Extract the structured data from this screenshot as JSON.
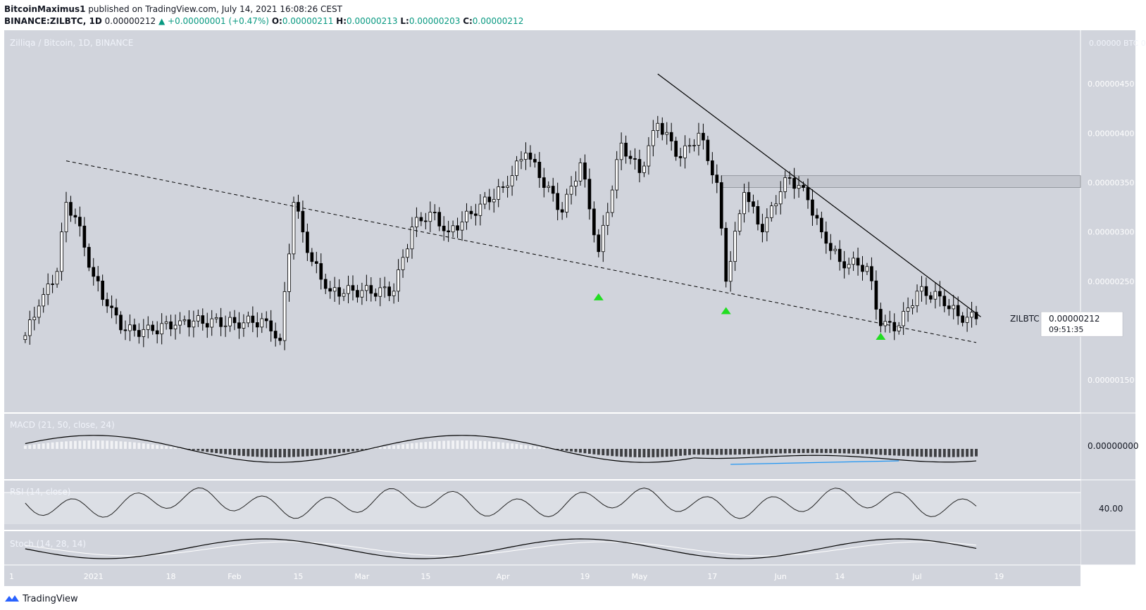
{
  "header": {
    "author": "BitcoinMaximus1",
    "published_text": "published on TradingView.com, July 14, 2021 16:08:26 CEST",
    "symbol_full": "BINANCE:ZILBTC, 1D",
    "last_price": "0.00000212",
    "change_arrow": "▲",
    "change": "+0.00000001 (+0.47%)",
    "o_label": "O:",
    "o_value": "0.00000211",
    "h_label": "H:",
    "h_value": "0.00000213",
    "l_label": "L:",
    "l_value": "0.00000203",
    "c_label": "C:",
    "c_value": "0.00000212"
  },
  "footer": {
    "brand": "TradingView",
    "logo_icon": "tradingview-logo-icon"
  },
  "colors": {
    "pane_bg": "#d1d4dc",
    "up_fill": "#ffffff",
    "down_fill": "#000000",
    "marker": "#22dd22",
    "macd_line": "#000000",
    "signal_line": "#ffffff",
    "divergence": "#2196f3",
    "text_light": "#f0f3fa"
  },
  "chart_data": {
    "type": "candlestick",
    "title": "Zilliqa / Bitcoin, 1D, BINANCE",
    "currency_label": "0.00000 BTC 00",
    "y_axis_ticks": [
      "0.00000450",
      "0.00000400",
      "0.00000350",
      "0.00000300",
      "0.00000250",
      "0.00000150"
    ],
    "y_tick_values": [
      450,
      400,
      350,
      300,
      250,
      150
    ],
    "ylim": [
      143,
      485
    ],
    "price_scale_note": "values x1e-8 BTC",
    "x_axis_labels": [
      "1",
      "2021",
      "18",
      "Feb",
      "15",
      "Mar",
      "15",
      "Apr",
      "19",
      "May",
      "17",
      "Jun",
      "14",
      "Jul",
      "19"
    ],
    "current_label": "ZILBTC",
    "current_price": "0.00000212",
    "countdown": "09:51:35",
    "current_value": 212,
    "resistance_zone": [
      345,
      357
    ],
    "descending_resistance": [
      {
        "date": "2021-05-05",
        "value": 460
      },
      {
        "date": "2021-07-15",
        "value": 214
      }
    ],
    "descending_support": [
      {
        "date": "2020-12-26",
        "value": 372
      },
      {
        "date": "2021-07-14",
        "value": 188
      }
    ],
    "bullish_markers": [
      {
        "date": "2021-04-22",
        "value": 235
      },
      {
        "date": "2021-05-20",
        "value": 221
      },
      {
        "date": "2021-06-23",
        "value": 195
      }
    ],
    "key_candles": [
      {
        "date": "2020-12-17",
        "close": 195
      },
      {
        "date": "2020-12-20",
        "close": 225
      },
      {
        "date": "2020-12-24",
        "close": 260
      },
      {
        "date": "2020-12-26",
        "close": 330
      },
      {
        "date": "2020-12-28",
        "close": 315
      },
      {
        "date": "2021-01-01",
        "close": 255
      },
      {
        "date": "2021-01-04",
        "close": 225
      },
      {
        "date": "2021-01-08",
        "close": 200
      },
      {
        "date": "2021-01-14",
        "close": 200
      },
      {
        "date": "2021-01-20",
        "close": 210
      },
      {
        "date": "2021-02-01",
        "close": 208
      },
      {
        "date": "2021-02-08",
        "close": 210
      },
      {
        "date": "2021-02-11",
        "close": 190
      },
      {
        "date": "2021-02-14",
        "close": 330
      },
      {
        "date": "2021-02-18",
        "close": 270
      },
      {
        "date": "2021-02-22",
        "close": 240
      },
      {
        "date": "2021-03-08",
        "close": 240
      },
      {
        "date": "2021-03-12",
        "close": 305
      },
      {
        "date": "2021-03-16",
        "close": 320
      },
      {
        "date": "2021-03-20",
        "close": 300
      },
      {
        "date": "2021-04-01",
        "close": 345
      },
      {
        "date": "2021-04-06",
        "close": 380
      },
      {
        "date": "2021-04-14",
        "close": 320
      },
      {
        "date": "2021-04-18",
        "close": 370
      },
      {
        "date": "2021-04-22",
        "close": 280
      },
      {
        "date": "2021-04-27",
        "close": 390
      },
      {
        "date": "2021-05-01",
        "close": 360
      },
      {
        "date": "2021-05-05",
        "close": 410
      },
      {
        "date": "2021-05-10",
        "close": 375
      },
      {
        "date": "2021-05-14",
        "close": 400
      },
      {
        "date": "2021-05-18",
        "close": 350
      },
      {
        "date": "2021-05-20",
        "close": 250
      },
      {
        "date": "2021-05-24",
        "close": 340
      },
      {
        "date": "2021-05-28",
        "close": 300
      },
      {
        "date": "2021-06-02",
        "close": 355
      },
      {
        "date": "2021-06-06",
        "close": 345
      },
      {
        "date": "2021-06-10",
        "close": 300
      },
      {
        "date": "2021-06-14",
        "close": 270
      },
      {
        "date": "2021-06-20",
        "close": 265
      },
      {
        "date": "2021-06-23",
        "close": 205
      },
      {
        "date": "2021-06-27",
        "close": 205
      },
      {
        "date": "2021-07-01",
        "close": 240
      },
      {
        "date": "2021-07-06",
        "close": 235
      },
      {
        "date": "2021-07-10",
        "close": 215
      },
      {
        "date": "2021-07-14",
        "close": 212
      }
    ],
    "indicators": {
      "macd": {
        "label": "MACD (21, 50, close, 24)",
        "axis_value": "0.00000000"
      },
      "rsi": {
        "label": "RSI (14, close)",
        "axis_value": "40.00",
        "level": 40
      },
      "stoch": {
        "label": "Stoch (14, 28, 14)"
      }
    }
  }
}
